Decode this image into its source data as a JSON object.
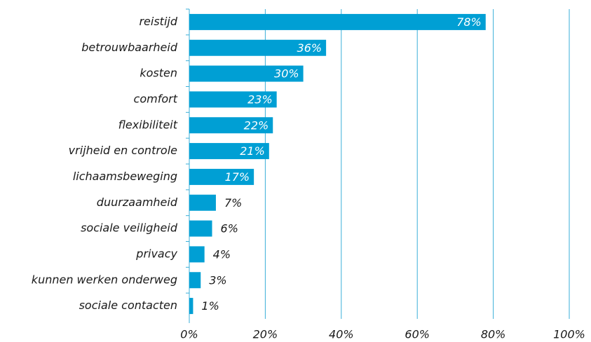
{
  "chart_data": {
    "type": "bar",
    "orientation": "horizontal",
    "categories": [
      "reistijd",
      "betrouwbaarheid",
      "kosten",
      "comfort",
      "flexibiliteit",
      "vrijheid en controle",
      "lichaamsbeweging",
      "duurzaamheid",
      "sociale veiligheid",
      "privacy",
      "kunnen werken onderweg",
      "sociale contacten"
    ],
    "values": [
      78,
      36,
      30,
      23,
      22,
      21,
      17,
      7,
      6,
      4,
      3,
      1
    ],
    "value_labels": [
      "78%",
      "36%",
      "30%",
      "23%",
      "22%",
      "21%",
      "17%",
      "7%",
      "6%",
      "4%",
      "3%",
      "1%"
    ],
    "color": "#009fd4",
    "xlim": [
      0,
      100
    ],
    "xticks": [
      {
        "value": 0,
        "label": "0%"
      },
      {
        "value": 20,
        "label": "20%"
      },
      {
        "value": 40,
        "label": "40%"
      },
      {
        "value": 60,
        "label": "60%"
      },
      {
        "value": 80,
        "label": "80%"
      },
      {
        "value": 100,
        "label": "100%"
      }
    ],
    "grid": true
  }
}
